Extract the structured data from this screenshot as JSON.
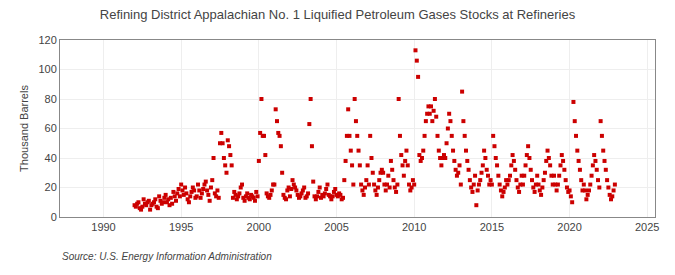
{
  "chart_data": {
    "type": "scatter",
    "title": "Refining District Appalachian No. 1 Liquified Petroleum Gases Stocks at Refineries",
    "y_label": "Thousand Barrels",
    "annotations": [
      "Source: U.S. Energy Information Administration"
    ],
    "color": "#cc0000",
    "marker": "square",
    "grid": true,
    "xlim": [
      1987.2,
      2025.5
    ],
    "ylim": [
      0,
      120
    ],
    "xticks": [
      1990,
      1995,
      2000,
      2005,
      2010,
      2015,
      2020,
      2025
    ],
    "yticks": [
      0,
      20,
      40,
      60,
      80,
      100,
      120
    ],
    "x": [
      1992.0,
      1992.083,
      1992.167,
      1992.25,
      1992.333,
      1992.417,
      1992.5,
      1992.583,
      1992.667,
      1992.75,
      1992.833,
      1992.917,
      1993.0,
      1993.083,
      1993.167,
      1993.25,
      1993.333,
      1993.417,
      1993.5,
      1993.583,
      1993.667,
      1993.75,
      1993.833,
      1993.917,
      1994.0,
      1994.083,
      1994.167,
      1994.25,
      1994.333,
      1994.417,
      1994.5,
      1994.583,
      1994.667,
      1994.75,
      1994.833,
      1994.917,
      1995.0,
      1995.083,
      1995.167,
      1995.25,
      1995.333,
      1995.417,
      1995.5,
      1995.583,
      1995.667,
      1995.75,
      1995.833,
      1995.917,
      1996.0,
      1996.083,
      1996.167,
      1996.25,
      1996.333,
      1996.417,
      1996.5,
      1996.583,
      1996.667,
      1996.75,
      1996.833,
      1996.917,
      1997.0,
      1997.083,
      1997.167,
      1997.25,
      1997.333,
      1997.417,
      1997.5,
      1997.583,
      1997.667,
      1997.75,
      1997.833,
      1997.917,
      1998.0,
      1998.083,
      1998.167,
      1998.25,
      1998.333,
      1998.417,
      1998.5,
      1998.583,
      1998.667,
      1998.75,
      1998.833,
      1998.917,
      1999.0,
      1999.083,
      1999.167,
      1999.25,
      1999.333,
      1999.417,
      1999.5,
      1999.583,
      1999.667,
      1999.75,
      1999.833,
      1999.917,
      2000.0,
      2000.083,
      2000.167,
      2000.25,
      2000.333,
      2000.417,
      2000.5,
      2000.583,
      2000.667,
      2000.75,
      2000.833,
      2000.917,
      2001.0,
      2001.083,
      2001.167,
      2001.25,
      2001.333,
      2001.417,
      2001.5,
      2001.583,
      2001.667,
      2001.75,
      2001.833,
      2001.917,
      2002.0,
      2002.083,
      2002.167,
      2002.25,
      2002.333,
      2002.417,
      2002.5,
      2002.583,
      2002.667,
      2002.75,
      2002.833,
      2002.917,
      2003.0,
      2003.083,
      2003.167,
      2003.25,
      2003.333,
      2003.417,
      2003.5,
      2003.583,
      2003.667,
      2003.75,
      2003.833,
      2003.917,
      2004.0,
      2004.083,
      2004.167,
      2004.25,
      2004.333,
      2004.417,
      2004.5,
      2004.583,
      2004.667,
      2004.75,
      2004.833,
      2004.917,
      2005.0,
      2005.083,
      2005.167,
      2005.25,
      2005.333,
      2005.417,
      2005.5,
      2005.583,
      2005.667,
      2005.75,
      2005.833,
      2005.917,
      2006.0,
      2006.083,
      2006.167,
      2006.25,
      2006.333,
      2006.417,
      2006.5,
      2006.583,
      2006.667,
      2006.75,
      2006.833,
      2006.917,
      2007.0,
      2007.083,
      2007.167,
      2007.25,
      2007.333,
      2007.417,
      2007.5,
      2007.583,
      2007.667,
      2007.75,
      2007.833,
      2007.917,
      2008.0,
      2008.083,
      2008.167,
      2008.25,
      2008.333,
      2008.417,
      2008.5,
      2008.583,
      2008.667,
      2008.75,
      2008.833,
      2008.917,
      2009.0,
      2009.083,
      2009.167,
      2009.25,
      2009.333,
      2009.417,
      2009.5,
      2009.583,
      2009.667,
      2009.75,
      2009.833,
      2009.917,
      2010.0,
      2010.083,
      2010.167,
      2010.25,
      2010.333,
      2010.417,
      2010.5,
      2010.583,
      2010.667,
      2010.75,
      2010.833,
      2010.917,
      2011.0,
      2011.083,
      2011.167,
      2011.25,
      2011.333,
      2011.417,
      2011.5,
      2011.583,
      2011.667,
      2011.75,
      2011.833,
      2011.917,
      2012.0,
      2012.083,
      2012.167,
      2012.25,
      2012.333,
      2012.417,
      2012.5,
      2012.583,
      2012.667,
      2012.75,
      2012.833,
      2012.917,
      2013.0,
      2013.083,
      2013.167,
      2013.25,
      2013.333,
      2013.417,
      2013.5,
      2013.583,
      2013.667,
      2013.75,
      2013.833,
      2013.917,
      2014.0,
      2014.083,
      2014.167,
      2014.25,
      2014.333,
      2014.417,
      2014.5,
      2014.583,
      2014.667,
      2014.75,
      2014.833,
      2014.917,
      2015.0,
      2015.083,
      2015.167,
      2015.25,
      2015.333,
      2015.417,
      2015.5,
      2015.583,
      2015.667,
      2015.75,
      2015.833,
      2015.917,
      2016.0,
      2016.083,
      2016.167,
      2016.25,
      2016.333,
      2016.417,
      2016.5,
      2016.583,
      2016.667,
      2016.75,
      2016.833,
      2016.917,
      2017.0,
      2017.083,
      2017.167,
      2017.25,
      2017.333,
      2017.417,
      2017.5,
      2017.583,
      2017.667,
      2017.75,
      2017.833,
      2017.917,
      2018.0,
      2018.083,
      2018.167,
      2018.25,
      2018.333,
      2018.417,
      2018.5,
      2018.583,
      2018.667,
      2018.75,
      2018.833,
      2018.917,
      2019.0,
      2019.083,
      2019.167,
      2019.25,
      2019.333,
      2019.417,
      2019.5,
      2019.583,
      2019.667,
      2019.75,
      2019.833,
      2019.917,
      2020.0,
      2020.083,
      2020.167,
      2020.25,
      2020.333,
      2020.417,
      2020.5,
      2020.583,
      2020.667,
      2020.75,
      2020.833,
      2020.917,
      2021.0,
      2021.083,
      2021.167,
      2021.25,
      2021.333,
      2021.417,
      2021.5,
      2021.583,
      2021.667,
      2021.75,
      2021.833,
      2021.917,
      2022.0,
      2022.083,
      2022.167,
      2022.25,
      2022.333,
      2022.417,
      2022.5,
      2022.583,
      2022.667,
      2022.75,
      2022.833,
      2022.917
    ],
    "values": [
      8,
      7,
      9,
      10,
      6,
      5,
      7,
      12,
      9,
      8,
      10,
      11,
      5,
      8,
      9,
      10,
      12,
      7,
      6,
      14,
      11,
      9,
      10,
      13,
      15,
      10,
      12,
      8,
      13,
      9,
      17,
      14,
      11,
      16,
      19,
      14,
      22,
      18,
      15,
      20,
      16,
      12,
      10,
      14,
      17,
      20,
      18,
      13,
      14,
      22,
      18,
      13,
      16,
      19,
      22,
      24,
      18,
      15,
      11,
      20,
      25,
      40,
      16,
      14,
      18,
      13,
      50,
      57,
      50,
      40,
      35,
      30,
      52,
      48,
      42,
      35,
      13,
      17,
      15,
      12,
      14,
      16,
      20,
      22,
      13,
      11,
      14,
      16,
      13,
      12,
      15,
      14,
      13,
      11,
      17,
      14,
      38,
      57,
      80,
      55,
      55,
      42,
      16,
      14,
      13,
      15,
      18,
      22,
      22,
      73,
      65,
      57,
      55,
      48,
      30,
      15,
      13,
      12,
      18,
      20,
      14,
      19,
      25,
      22,
      20,
      18,
      15,
      13,
      14,
      16,
      18,
      20,
      13,
      14,
      16,
      63,
      80,
      48,
      24,
      14,
      12,
      14,
      17,
      20,
      13,
      15,
      14,
      16,
      19,
      22,
      15,
      14,
      12,
      14,
      17,
      19,
      15,
      14,
      16,
      15,
      12,
      13,
      25,
      38,
      55,
      73,
      55,
      45,
      35,
      22,
      80,
      65,
      55,
      45,
      35,
      22,
      18,
      15,
      20,
      25,
      35,
      22,
      55,
      40,
      30,
      22,
      18,
      15,
      20,
      25,
      30,
      32,
      30,
      22,
      18,
      22,
      28,
      20,
      38,
      32,
      25,
      20,
      17,
      22,
      80,
      55,
      42,
      35,
      28,
      38,
      45,
      35,
      22,
      18,
      20,
      25,
      22,
      113,
      106,
      95,
      42,
      38,
      40,
      45,
      55,
      65,
      70,
      75,
      70,
      75,
      65,
      72,
      80,
      68,
      55,
      45,
      40,
      35,
      40,
      42,
      40,
      50,
      60,
      70,
      65,
      55,
      45,
      38,
      32,
      28,
      30,
      35,
      22,
      85,
      65,
      55,
      45,
      38,
      32,
      25,
      20,
      17,
      22,
      28,
      8,
      18,
      22,
      25,
      30,
      35,
      45,
      40,
      32,
      28,
      22,
      25,
      22,
      55,
      48,
      40,
      35,
      28,
      22,
      18,
      14,
      17,
      20,
      25,
      22,
      25,
      28,
      35,
      42,
      38,
      32,
      25,
      20,
      17,
      22,
      28,
      22,
      28,
      35,
      42,
      48,
      40,
      32,
      25,
      20,
      17,
      22,
      28,
      22,
      18,
      15,
      20,
      25,
      30,
      38,
      45,
      40,
      35,
      28,
      22,
      28,
      22,
      18,
      22,
      28,
      35,
      42,
      38,
      32,
      25,
      20,
      17,
      18,
      14,
      10,
      78,
      65,
      55,
      45,
      38,
      32,
      25,
      18,
      22,
      18,
      12,
      15,
      18,
      22,
      28,
      35,
      42,
      38,
      32,
      25,
      20,
      65,
      55,
      45,
      38,
      32,
      25,
      20,
      15,
      12,
      14,
      18,
      22
    ]
  }
}
